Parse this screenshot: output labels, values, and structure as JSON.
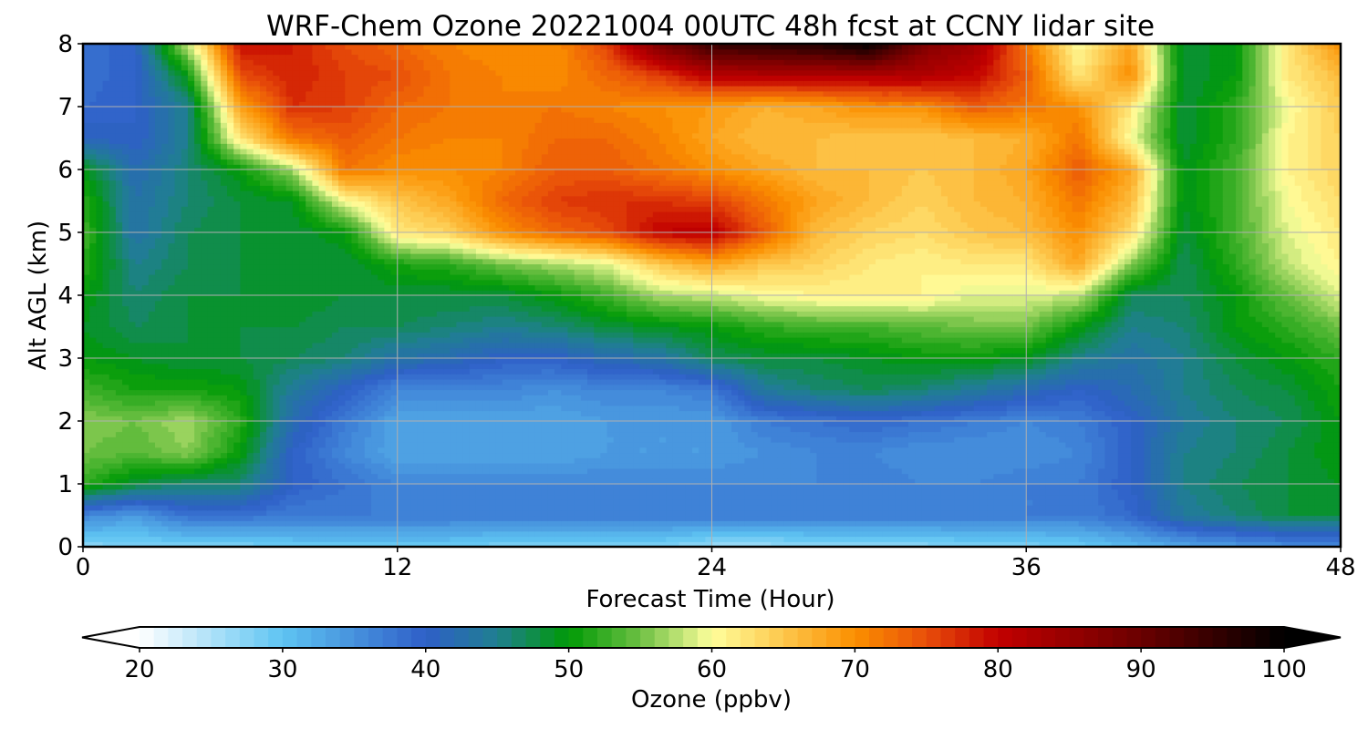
{
  "chart_data": {
    "type": "heatmap",
    "title": "WRF-Chem Ozone  20221004 00UTC 48h fcst at CCNY lidar site",
    "xlabel": "Forecast Time (Hour)",
    "ylabel": "Alt AGL (km)",
    "xlim": [
      0,
      48
    ],
    "ylim": [
      0,
      8
    ],
    "xticks": [
      0,
      12,
      24,
      36,
      48
    ],
    "yticks": [
      0,
      1,
      2,
      3,
      4,
      5,
      6,
      7,
      8
    ],
    "grid": true,
    "colorbar": {
      "label": "Ozone  (ppbv)",
      "orientation": "horizontal",
      "min": 20,
      "max": 100,
      "ticks": [
        20,
        30,
        40,
        50,
        60,
        70,
        80,
        90,
        100
      ],
      "extend": "both",
      "colormap_stops": [
        {
          "v": 20,
          "c": "#ffffff"
        },
        {
          "v": 30,
          "c": "#5ec4f2"
        },
        {
          "v": 40,
          "c": "#2f5fc8"
        },
        {
          "v": 45,
          "c": "#1f7f90"
        },
        {
          "v": 50,
          "c": "#009a06"
        },
        {
          "v": 55,
          "c": "#6dc043"
        },
        {
          "v": 60,
          "c": "#ffff9c"
        },
        {
          "v": 65,
          "c": "#fdc74c"
        },
        {
          "v": 70,
          "c": "#fb8f00"
        },
        {
          "v": 75,
          "c": "#e84e0a"
        },
        {
          "v": 80,
          "c": "#c20000"
        },
        {
          "v": 90,
          "c": "#6a0000"
        },
        {
          "v": 100,
          "c": "#000000"
        }
      ]
    },
    "x": [
      0,
      2,
      4,
      6,
      8,
      10,
      12,
      14,
      16,
      18,
      20,
      22,
      24,
      26,
      28,
      30,
      32,
      34,
      36,
      38,
      40,
      42,
      44,
      46,
      48
    ],
    "y": [
      0,
      0.5,
      1,
      1.5,
      2,
      2.5,
      3,
      3.5,
      4,
      4.5,
      5,
      5.5,
      6,
      6.5,
      7,
      7.5,
      8
    ],
    "z": [
      [
        27,
        28,
        28,
        28,
        29,
        29,
        29,
        29,
        28,
        28,
        28,
        28,
        26,
        26,
        27,
        27,
        27,
        28,
        28,
        29,
        31,
        33,
        34,
        35,
        35
      ],
      [
        36,
        34,
        38,
        38,
        37,
        37,
        37,
        37,
        37,
        37,
        37,
        37,
        37,
        37,
        37,
        37,
        37,
        37,
        37,
        37,
        39,
        44,
        46,
        48,
        48
      ],
      [
        52,
        48,
        46,
        46,
        40,
        38,
        36,
        36,
        36,
        36,
        36,
        36,
        36,
        36,
        36,
        37,
        36,
        36,
        37,
        37,
        40,
        45,
        47,
        48,
        49
      ],
      [
        55,
        54,
        56,
        50,
        40,
        36,
        33,
        33,
        33,
        33,
        34,
        34,
        34,
        35,
        36,
        36,
        35,
        35,
        35,
        36,
        40,
        45,
        46,
        48,
        50
      ],
      [
        56,
        55,
        57,
        52,
        42,
        37,
        33,
        33,
        33,
        33,
        34,
        34,
        34,
        37,
        38,
        39,
        38,
        37,
        36,
        37,
        40,
        44,
        46,
        47,
        50
      ],
      [
        53,
        51,
        51,
        50,
        44,
        40,
        36,
        36,
        36,
        35,
        36,
        36,
        37,
        44,
        46,
        47,
        46,
        44,
        42,
        40,
        42,
        45,
        47,
        48,
        51
      ],
      [
        50,
        49,
        48,
        48,
        47,
        46,
        43,
        42,
        40,
        40,
        42,
        43,
        47,
        48,
        48,
        49,
        50,
        50,
        49,
        45,
        43,
        45,
        48,
        50,
        52
      ],
      [
        49,
        47,
        48,
        48,
        48,
        47,
        47,
        46,
        45,
        46,
        48,
        49,
        50,
        52,
        53,
        53,
        54,
        55,
        55,
        50,
        45,
        46,
        50,
        52,
        55
      ],
      [
        50,
        46,
        48,
        48,
        49,
        48,
        48,
        48,
        48,
        50,
        53,
        57,
        58,
        60,
        61,
        61,
        61,
        59,
        59,
        58,
        47,
        47,
        50,
        55,
        59
      ],
      [
        52,
        45,
        47,
        48,
        48,
        48,
        51,
        52,
        55,
        57,
        59,
        65,
        68,
        65,
        64,
        62,
        61,
        62,
        62,
        68,
        56,
        47,
        52,
        58,
        61
      ],
      [
        53,
        43,
        47,
        48,
        48,
        50,
        62,
        64,
        70,
        73,
        75,
        80,
        81,
        74,
        66,
        64,
        63,
        65,
        66,
        70,
        63,
        48,
        53,
        59,
        62
      ],
      [
        52,
        43,
        46,
        48,
        49,
        60,
        65,
        68,
        73,
        76,
        77,
        77,
        76,
        72,
        68,
        66,
        64,
        66,
        67,
        72,
        66,
        49,
        53,
        60,
        63
      ],
      [
        50,
        42,
        46,
        50,
        57,
        72,
        70,
        70,
        71,
        74,
        74,
        72,
        70,
        68,
        66,
        66,
        65,
        66,
        68,
        74,
        68,
        49,
        53,
        61,
        64
      ],
      [
        41,
        40,
        45,
        62,
        72,
        74,
        72,
        71,
        71,
        73,
        73,
        71,
        68,
        66,
        66,
        65,
        65,
        66,
        67,
        72,
        60,
        48,
        52,
        61,
        64
      ],
      [
        39,
        40,
        45,
        68,
        77,
        76,
        73,
        72,
        71,
        72,
        71,
        70,
        69,
        67,
        68,
        70,
        70,
        74,
        72,
        70,
        62,
        48,
        52,
        60,
        65
      ],
      [
        38,
        40,
        50,
        75,
        78,
        76,
        75,
        72,
        71,
        70,
        73,
        76,
        81,
        82,
        82,
        82,
        82,
        80,
        74,
        62,
        70,
        48,
        50,
        62,
        66
      ],
      [
        38,
        40,
        58,
        79,
        78,
        75,
        73,
        71,
        70,
        70,
        76,
        88,
        95,
        96,
        97,
        100,
        88,
        84,
        72,
        60,
        68,
        48,
        50,
        62,
        70
      ]
    ]
  }
}
